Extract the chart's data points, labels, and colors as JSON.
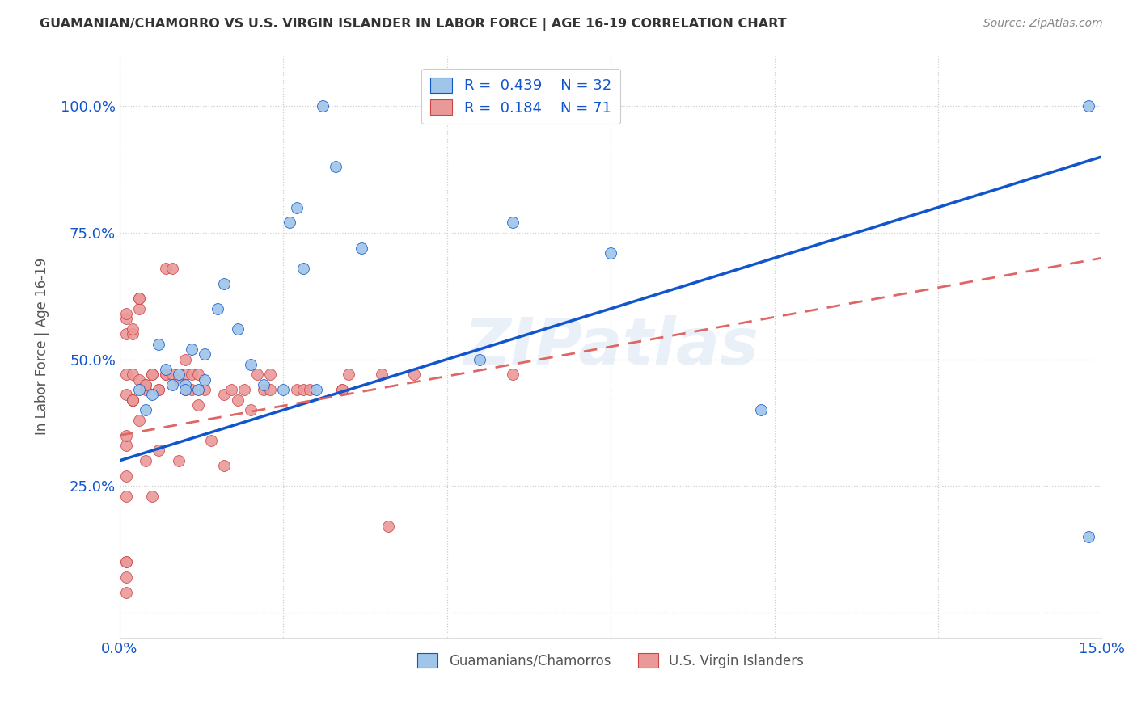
{
  "title": "GUAMANIAN/CHAMORRO VS U.S. VIRGIN ISLANDER IN LABOR FORCE | AGE 16-19 CORRELATION CHART",
  "source": "Source: ZipAtlas.com",
  "ylabel": "In Labor Force | Age 16-19",
  "xlim": [
    0.0,
    0.15
  ],
  "ylim": [
    -0.05,
    1.1
  ],
  "ytick_labels": [
    "",
    "25.0%",
    "50.0%",
    "75.0%",
    "100.0%"
  ],
  "ytick_values": [
    0.0,
    0.25,
    0.5,
    0.75,
    1.0
  ],
  "xtick_labels": [
    "0.0%",
    "",
    "",
    "",
    "",
    "",
    "15.0%"
  ],
  "xtick_values": [
    0.0,
    0.025,
    0.05,
    0.075,
    0.1,
    0.125,
    0.15
  ],
  "legend_R_blue": "0.439",
  "legend_N_blue": "32",
  "legend_R_pink": "0.184",
  "legend_N_pink": "71",
  "blue_color": "#9fc5e8",
  "pink_color": "#ea9999",
  "blue_line_color": "#1155cc",
  "pink_line_color": "#e06666",
  "grid_color": "#cccccc",
  "background_color": "#ffffff",
  "watermark_text": "ZIPatlas",
  "blue_line_x0": 0.0,
  "blue_line_y0": 0.3,
  "blue_line_x1": 0.15,
  "blue_line_y1": 0.9,
  "pink_line_x0": 0.0,
  "pink_line_y0": 0.35,
  "pink_line_x1": 0.15,
  "pink_line_y1": 0.7,
  "blue_scatter_x": [
    0.031,
    0.003,
    0.005,
    0.007,
    0.009,
    0.01,
    0.011,
    0.012,
    0.013,
    0.015,
    0.018,
    0.02,
    0.022,
    0.025,
    0.026,
    0.028,
    0.03,
    0.033,
    0.037,
    0.055,
    0.06,
    0.075,
    0.098,
    0.148,
    0.148,
    0.027,
    0.016,
    0.013,
    0.01,
    0.008,
    0.006,
    0.004
  ],
  "blue_scatter_y": [
    1.0,
    0.44,
    0.43,
    0.48,
    0.47,
    0.45,
    0.52,
    0.44,
    0.46,
    0.6,
    0.56,
    0.49,
    0.45,
    0.44,
    0.77,
    0.68,
    0.44,
    0.88,
    0.72,
    0.5,
    0.77,
    0.71,
    0.4,
    0.15,
    1.0,
    0.8,
    0.65,
    0.51,
    0.44,
    0.45,
    0.53,
    0.4
  ],
  "pink_scatter_x": [
    0.001,
    0.001,
    0.001,
    0.001,
    0.001,
    0.001,
    0.001,
    0.001,
    0.001,
    0.001,
    0.001,
    0.001,
    0.001,
    0.002,
    0.002,
    0.002,
    0.002,
    0.002,
    0.002,
    0.002,
    0.003,
    0.003,
    0.003,
    0.003,
    0.003,
    0.004,
    0.004,
    0.004,
    0.004,
    0.005,
    0.005,
    0.005,
    0.006,
    0.006,
    0.006,
    0.007,
    0.007,
    0.007,
    0.008,
    0.008,
    0.009,
    0.009,
    0.01,
    0.01,
    0.01,
    0.011,
    0.011,
    0.012,
    0.012,
    0.013,
    0.014,
    0.016,
    0.016,
    0.017,
    0.018,
    0.019,
    0.02,
    0.021,
    0.022,
    0.023,
    0.023,
    0.027,
    0.028,
    0.029,
    0.034,
    0.034,
    0.035,
    0.04,
    0.041,
    0.045,
    0.06
  ],
  "pink_scatter_y": [
    0.58,
    0.59,
    0.43,
    0.55,
    0.33,
    0.47,
    0.35,
    0.27,
    0.23,
    0.07,
    0.1,
    0.1,
    0.04,
    0.47,
    0.55,
    0.56,
    0.42,
    0.42,
    0.42,
    0.42,
    0.6,
    0.62,
    0.62,
    0.46,
    0.38,
    0.44,
    0.45,
    0.45,
    0.3,
    0.47,
    0.47,
    0.23,
    0.44,
    0.44,
    0.32,
    0.47,
    0.47,
    0.68,
    0.47,
    0.68,
    0.46,
    0.3,
    0.47,
    0.44,
    0.5,
    0.44,
    0.47,
    0.47,
    0.41,
    0.44,
    0.34,
    0.43,
    0.29,
    0.44,
    0.42,
    0.44,
    0.4,
    0.47,
    0.44,
    0.44,
    0.47,
    0.44,
    0.44,
    0.44,
    0.44,
    0.44,
    0.47,
    0.47,
    0.17,
    0.47,
    0.47
  ]
}
